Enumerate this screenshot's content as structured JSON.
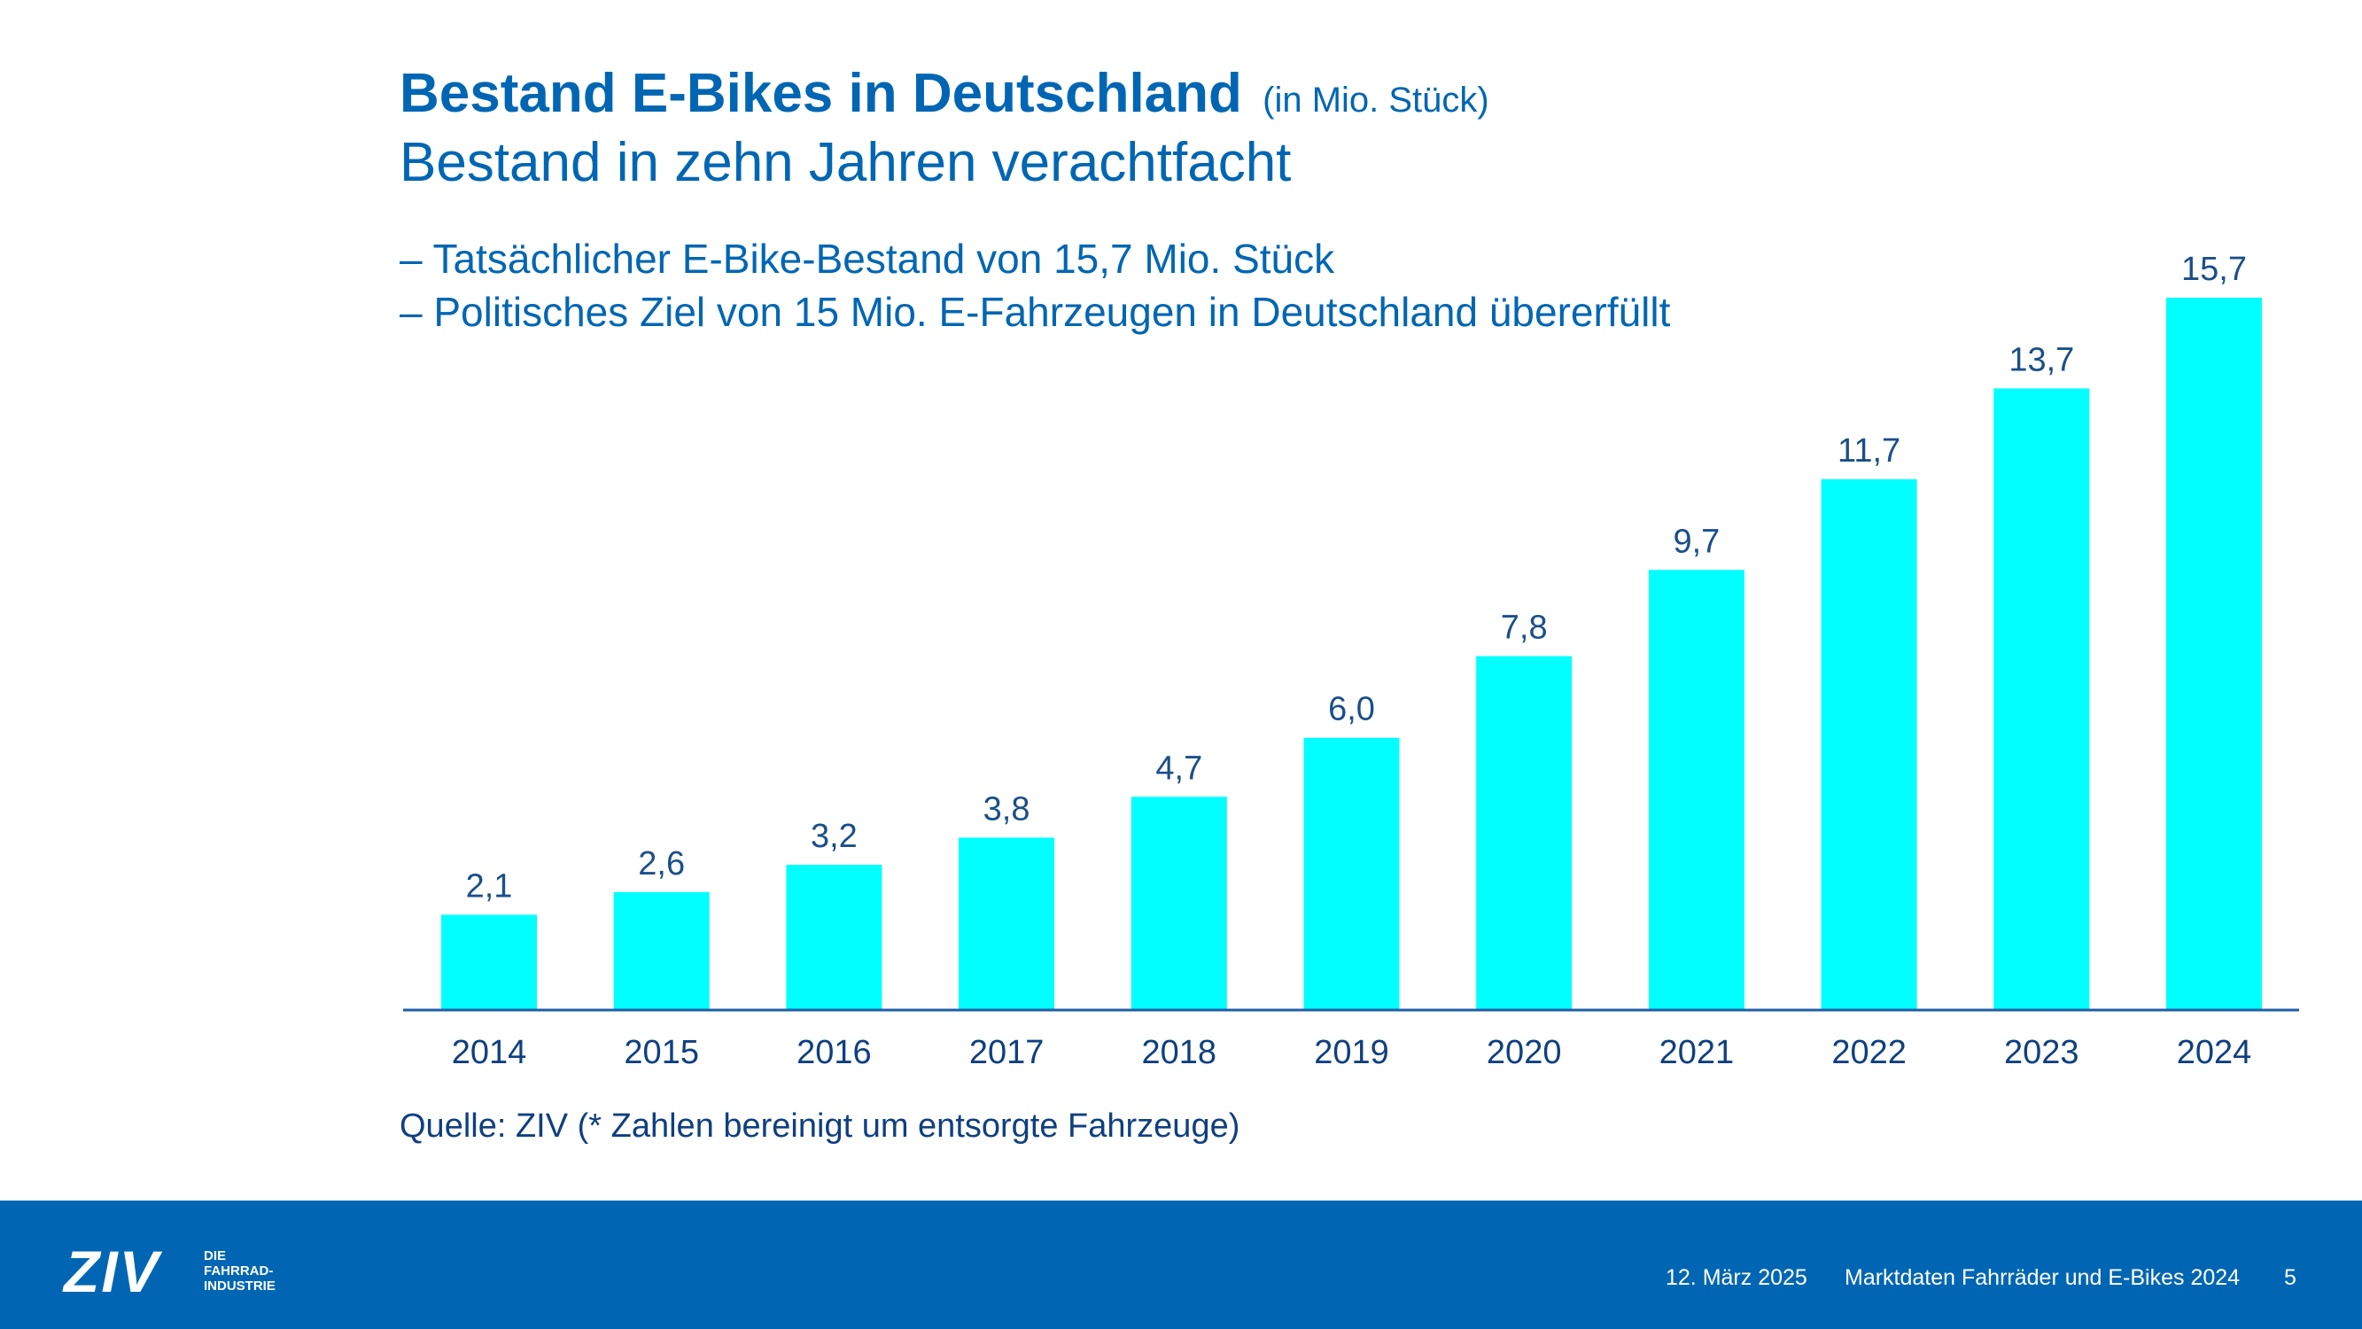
{
  "slide": {
    "title": "Bestand E-Bikes in Deutschland",
    "title_unit": "(in Mio. Stück)",
    "subtitle": "Bestand in zehn Jahren verachtfacht",
    "bullets": [
      "– Tatsächlicher E-Bike-Bestand von 15,7 Mio. Stück",
      "– Politisches Ziel von 15 Mio. E-Fahrzeugen in Deutschland übererfüllt"
    ],
    "source": "Quelle: ZIV (* Zahlen bereinigt um entsorgte Fahrzeuge)"
  },
  "chart_data": {
    "type": "bar",
    "categories": [
      "2014",
      "2015",
      "2016",
      "2017",
      "2018",
      "2019",
      "2020",
      "2021",
      "2022",
      "2023",
      "2024"
    ],
    "values": [
      2.1,
      2.6,
      3.2,
      3.8,
      4.7,
      6.0,
      7.8,
      9.7,
      11.7,
      13.7,
      15.7
    ],
    "value_labels": [
      "2,1",
      "2,6",
      "3,2",
      "3,8",
      "4,7",
      "6,0",
      "7,8",
      "9,7",
      "11,7",
      "13,7",
      "15,7"
    ],
    "title": "Bestand E-Bikes in Deutschland",
    "xlabel": "",
    "ylabel": "",
    "ylim": [
      0,
      15.7
    ],
    "grid": false,
    "bar_color": "#00ffff"
  },
  "footer": {
    "logo": "ZIV",
    "logo_sub": "DIE\nFAHRRAD-\nINDUSTRIE",
    "date": "12. März 2025",
    "text": "Marktdaten Fahrräder und E-Bikes 2024",
    "page": "5",
    "background": "#0066b3"
  },
  "colors": {
    "accent": "#0066b3",
    "bar": "#00ffff"
  }
}
